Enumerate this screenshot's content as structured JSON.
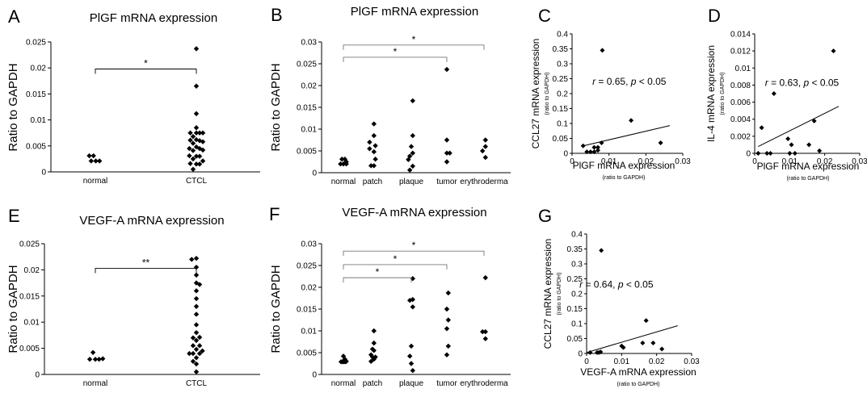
{
  "chart_data": [
    {
      "id": "A",
      "panel_label": "A",
      "type": "scatter",
      "kind": "dot",
      "title": "PlGF mRNA expression",
      "ylabel": "Ratio to GAPDH",
      "ylabel_sub": "",
      "ylim": [
        0,
        0.025
      ],
      "yticks": [
        0,
        0.005,
        0.01,
        0.015,
        0.02,
        0.025
      ],
      "ytick_labels": [
        "0",
        "0.005",
        "0.01",
        "0.015",
        "0.02",
        "0.025"
      ],
      "categories": [
        "normal",
        "CTCL"
      ],
      "groups": [
        {
          "name": "normal",
          "points": [
            [
              -0.13,
              0.0031
            ],
            [
              -0.04,
              0.0031
            ],
            [
              -0.09,
              0.0021
            ],
            [
              0.01,
              0.0021
            ],
            [
              0.09,
              0.0021
            ]
          ]
        },
        {
          "name": "CTCL",
          "points": [
            [
              -0.13,
              0.0075
            ],
            [
              -0.13,
              0.0061
            ],
            [
              -0.15,
              0.0045
            ],
            [
              -0.15,
              0.0031
            ],
            [
              -0.13,
              0.0016
            ],
            [
              -0.07,
              0.0068
            ],
            [
              -0.07,
              0.0055
            ],
            [
              -0.07,
              0.0041
            ],
            [
              -0.07,
              0.0025
            ],
            [
              -0.07,
              0.0005
            ],
            [
              0.0,
              0.0237
            ],
            [
              0.0,
              0.0165
            ],
            [
              0.0,
              0.0112
            ],
            [
              0.0,
              0.0085
            ],
            [
              0.0,
              0.0075
            ],
            [
              0.0,
              0.0062
            ],
            [
              0.0,
              0.0048
            ],
            [
              0.0,
              0.003
            ],
            [
              0.0,
              0.0015
            ],
            [
              0.07,
              0.0075
            ],
            [
              0.07,
              0.006
            ],
            [
              0.07,
              0.0045
            ],
            [
              0.07,
              0.003
            ],
            [
              0.07,
              0.0015
            ],
            [
              0.14,
              0.0075
            ],
            [
              0.14,
              0.0058
            ],
            [
              0.14,
              0.0042
            ],
            [
              0.14,
              0.0021
            ]
          ]
        }
      ],
      "brackets": [
        {
          "from": "normal",
          "to": "CTCL",
          "y": 0.0198,
          "label": "*"
        }
      ]
    },
    {
      "id": "B",
      "panel_label": "B",
      "type": "scatter",
      "kind": "dot",
      "title": "PlGF mRNA expression",
      "ylabel": "Ratio to GAPDH",
      "ylabel_sub": "",
      "ylim": [
        0,
        0.03
      ],
      "yticks": [
        0,
        0.005,
        0.01,
        0.015,
        0.02,
        0.025,
        0.03
      ],
      "ytick_labels": [
        "0",
        "0.005",
        "0.01",
        "0.015",
        "0.02",
        "0.025",
        "0.03"
      ],
      "categories": [
        "normal",
        "patch",
        "plaque",
        "tumor",
        "erythroderma"
      ],
      "groups": [
        {
          "name": "normal",
          "points": [
            [
              -0.05,
              0.0031
            ],
            [
              0.05,
              0.0031
            ],
            [
              0.1,
              0.0025
            ],
            [
              -0.1,
              0.002
            ],
            [
              0.0,
              0.002
            ],
            [
              0.1,
              0.002
            ]
          ]
        },
        {
          "name": "patch",
          "points": [
            [
              0.05,
              0.0112
            ],
            [
              0.05,
              0.0085
            ],
            [
              -0.1,
              0.007
            ],
            [
              0.1,
              0.0062
            ],
            [
              -0.1,
              0.0055
            ],
            [
              0.05,
              0.0048
            ],
            [
              0.1,
              0.0031
            ],
            [
              -0.05,
              0.0016
            ],
            [
              0.05,
              0.0016
            ]
          ]
        },
        {
          "name": "plaque",
          "points": [
            [
              0.05,
              0.0165
            ],
            [
              0.05,
              0.0085
            ],
            [
              0.0,
              0.006
            ],
            [
              0.05,
              0.0045
            ],
            [
              -0.05,
              0.0038
            ],
            [
              -0.1,
              0.003
            ],
            [
              0.05,
              0.0015
            ],
            [
              -0.05,
              0.0006
            ]
          ]
        },
        {
          "name": "tumor",
          "points": [
            [
              0.0,
              0.0237
            ],
            [
              0.0,
              0.0075
            ],
            [
              0.0,
              0.0045
            ],
            [
              0.1,
              0.0045
            ],
            [
              0.0,
              0.0025
            ]
          ]
        },
        {
          "name": "erythroderma",
          "points": [
            [
              0.05,
              0.0075
            ],
            [
              0.05,
              0.006
            ],
            [
              -0.05,
              0.005
            ],
            [
              0.05,
              0.0035
            ]
          ]
        }
      ],
      "brackets": [
        {
          "from": "normal",
          "to": "erythroderma",
          "y": 0.0293,
          "label": "*"
        },
        {
          "from": "normal",
          "to": "tumor",
          "y": 0.0265,
          "label": "*"
        }
      ]
    },
    {
      "id": "C",
      "panel_label": "C",
      "type": "scatter",
      "kind": "xy",
      "title": "",
      "ylabel": "CCL27 mRNA expression",
      "ylabel_sub": "(ratio to GAPDH)",
      "xlabel": "PlGF mRNA expression",
      "xlabel_sub": "(ratio to GAPDH)",
      "xlim": [
        0,
        0.03
      ],
      "xticks": [
        0,
        0.01,
        0.02,
        0.03
      ],
      "xtick_labels": [
        "0",
        "0.01",
        "0.02",
        "0.03"
      ],
      "ylim": [
        0,
        0.4
      ],
      "yticks": [
        0,
        0.05,
        0.1,
        0.15,
        0.2,
        0.25,
        0.3,
        0.35,
        0.4
      ],
      "ytick_labels": [
        "0",
        "0.05",
        "0.1",
        "0.15",
        "0.2",
        "0.25",
        "0.3",
        "0.35",
        "0.4"
      ],
      "x": [
        0.003,
        0.004,
        0.005,
        0.006,
        0.006,
        0.007,
        0.007,
        0.008,
        0.0082,
        0.016,
        0.024
      ],
      "y": [
        0.025,
        0.005,
        0.005,
        0.02,
        0.005,
        0.02,
        0.01,
        0.035,
        0.345,
        0.11,
        0.035
      ],
      "fit_line": {
        "x": [
          0.003,
          0.0265
        ],
        "y": [
          0.025,
          0.093
        ]
      },
      "r_prefix": "r",
      "r_value": " = 0.65, ",
      "p_prefix": "p",
      "p_value": " < 0.05",
      "annotation_pos": [
        0.0155,
        0.23
      ]
    },
    {
      "id": "D",
      "panel_label": "D",
      "type": "scatter",
      "kind": "xy",
      "title": "",
      "ylabel": "IL-4 mRNA expression",
      "ylabel_sub": "(ratio to GAPDH)",
      "xlabel": "PlGF mRNA expression",
      "xlabel_sub": "(ratio to GAPDH)",
      "xlim": [
        0,
        0.03
      ],
      "xticks": [
        0,
        0.01,
        0.02,
        0.03
      ],
      "xtick_labels": [
        "0",
        "0.01",
        "0.02",
        "0.03"
      ],
      "ylim": [
        0,
        0.014
      ],
      "yticks": [
        0,
        0.002,
        0.004,
        0.006,
        0.008,
        0.01,
        0.012,
        0.014
      ],
      "ytick_labels": [
        "0",
        "0.002",
        "0.004",
        "0.006",
        "0.008",
        "0.01",
        "0.012",
        "0.014"
      ],
      "x": [
        0.001,
        0.002,
        0.0035,
        0.0045,
        0.0055,
        0.0095,
        0.01,
        0.0105,
        0.0115,
        0.0155,
        0.017,
        0.0185,
        0.0225
      ],
      "y": [
        0,
        0.003,
        0,
        0,
        0.007,
        0.0017,
        0,
        0.001,
        0,
        0.001,
        0.0038,
        0.0003,
        0.012
      ],
      "fit_line": {
        "x": [
          0.001,
          0.024
        ],
        "y": [
          0.0008,
          0.0055
        ]
      },
      "r_prefix": "r",
      "r_value": " = 0.63, ",
      "p_prefix": "p",
      "p_value": " < 0.05",
      "annotation_pos": [
        0.0135,
        0.0079
      ]
    },
    {
      "id": "E",
      "panel_label": "E",
      "type": "scatter",
      "kind": "dot",
      "title": "VEGF-A mRNA expression",
      "ylabel": "Ratio to GAPDH",
      "ylabel_sub": "",
      "ylim": [
        0,
        0.025
      ],
      "yticks": [
        0,
        0.005,
        0.01,
        0.015,
        0.02,
        0.025
      ],
      "ytick_labels": [
        "0",
        "0.005",
        "0.01",
        "0.015",
        "0.02",
        "0.025"
      ],
      "categories": [
        "normal",
        "CTCL"
      ],
      "groups": [
        {
          "name": "normal",
          "points": [
            [
              -0.05,
              0.0042
            ],
            [
              -0.12,
              0.0029
            ],
            [
              0.0,
              0.0029
            ],
            [
              0.08,
              0.0029
            ],
            [
              0.16,
              0.003
            ]
          ]
        },
        {
          "name": "CTCL",
          "points": [
            [
              -0.1,
              0.022
            ],
            [
              0.0,
              0.0222
            ],
            [
              0.0,
              0.0205
            ],
            [
              0.0,
              0.019
            ],
            [
              0.0,
              0.0175
            ],
            [
              0.0,
              0.016
            ],
            [
              0.0,
              0.0145
            ],
            [
              0.0,
              0.013
            ],
            [
              0.0,
              0.0115
            ],
            [
              0.0,
              0.0095
            ],
            [
              0.0,
              0.008
            ],
            [
              0.0,
              0.0065
            ],
            [
              0.0,
              0.0048
            ],
            [
              0.0,
              0.0032
            ],
            [
              0.0,
              0.002
            ],
            [
              0.0,
              0.0005
            ],
            [
              -0.07,
              0.007
            ],
            [
              -0.07,
              0.0055
            ],
            [
              -0.07,
              0.004
            ],
            [
              -0.07,
              0.0025
            ],
            [
              -0.15,
              0.004
            ],
            [
              0.07,
              0.0172
            ],
            [
              0.07,
              0.0071
            ],
            [
              0.07,
              0.0055
            ],
            [
              0.07,
              0.004
            ],
            [
              0.13,
              0.0045
            ]
          ]
        }
      ],
      "brackets": [
        {
          "from": "normal",
          "to": "CTCL",
          "y": 0.0203,
          "label": "**"
        }
      ]
    },
    {
      "id": "F",
      "panel_label": "F",
      "type": "scatter",
      "kind": "dot",
      "title": "VEGF-A mRNA expression",
      "ylabel": "Ratio to GAPDH",
      "ylabel_sub": "",
      "ylim": [
        0,
        0.03
      ],
      "yticks": [
        0,
        0.005,
        0.01,
        0.015,
        0.02,
        0.025,
        0.03
      ],
      "ytick_labels": [
        "0",
        "0.005",
        "0.01",
        "0.015",
        "0.02",
        "0.025",
        "0.03"
      ],
      "categories": [
        "normal",
        "patch",
        "plaque",
        "tumor",
        "erythroderma"
      ],
      "groups": [
        {
          "name": "normal",
          "points": [
            [
              0.0,
              0.0042
            ],
            [
              0.05,
              0.0035
            ],
            [
              -0.08,
              0.0029
            ],
            [
              -0.03,
              0.0029
            ],
            [
              0.02,
              0.0029
            ],
            [
              0.07,
              0.0029
            ],
            [
              0.1,
              0.003
            ]
          ]
        },
        {
          "name": "patch",
          "points": [
            [
              0.05,
              0.01
            ],
            [
              0.05,
              0.0072
            ],
            [
              0.0,
              0.0058
            ],
            [
              0.05,
              0.0055
            ],
            [
              -0.05,
              0.0045
            ],
            [
              0.0,
              0.004
            ],
            [
              0.1,
              0.004
            ],
            [
              0.05,
              0.0035
            ],
            [
              -0.05,
              0.003
            ]
          ]
        },
        {
          "name": "plaque",
          "points": [
            [
              0.05,
              0.022
            ],
            [
              -0.05,
              0.017
            ],
            [
              0.05,
              0.0172
            ],
            [
              0.05,
              0.0155
            ],
            [
              0.0,
              0.0065
            ],
            [
              -0.05,
              0.0042
            ],
            [
              0.0,
              0.0025
            ],
            [
              0.05,
              0.0009
            ]
          ]
        },
        {
          "name": "tumor",
          "points": [
            [
              0.05,
              0.0187
            ],
            [
              0.0,
              0.015
            ],
            [
              0.05,
              0.0125
            ],
            [
              0.0,
              0.0105
            ],
            [
              0.05,
              0.0065
            ],
            [
              0.0,
              0.0045
            ]
          ]
        },
        {
          "name": "erythroderma",
          "points": [
            [
              0.05,
              0.0222
            ],
            [
              -0.05,
              0.0098
            ],
            [
              0.05,
              0.0098
            ],
            [
              0.05,
              0.0082
            ]
          ]
        }
      ],
      "brackets": [
        {
          "from": "normal",
          "to": "erythroderma",
          "y": 0.0283,
          "label": "*"
        },
        {
          "from": "normal",
          "to": "tumor",
          "y": 0.0252,
          "label": "*"
        },
        {
          "from": "normal",
          "to": "plaque",
          "y": 0.0222,
          "label": "*"
        }
      ]
    },
    {
      "id": "G",
      "panel_label": "G",
      "type": "scatter",
      "kind": "xy",
      "title": "",
      "ylabel": "CCL27 mRNA expression",
      "ylabel_sub": "(ratio to GAPDH)",
      "xlabel": "VEGF-A mRNA expression",
      "xlabel_sub": "(ratio to GAPDH)",
      "xlim": [
        0,
        0.03
      ],
      "xticks": [
        0,
        0.01,
        0.02,
        0.03
      ],
      "xtick_labels": [
        "0",
        "0.01",
        "0.02",
        "0.03"
      ],
      "ylim": [
        0,
        0.4
      ],
      "yticks": [
        0,
        0.05,
        0.1,
        0.15,
        0.2,
        0.25,
        0.3,
        0.35,
        0.4
      ],
      "ytick_labels": [
        "0",
        "0.05",
        "0.1",
        "0.15",
        "0.2",
        "0.25",
        "0.3",
        "0.35",
        "0.4"
      ],
      "x": [
        0.001,
        0.003,
        0.0035,
        0.004,
        0.0042,
        0.01,
        0.0105,
        0.016,
        0.017,
        0.019,
        0.0215
      ],
      "y": [
        0.003,
        0.003,
        0.003,
        0.005,
        0.345,
        0.025,
        0.02,
        0.035,
        0.11,
        0.035,
        0.015
      ],
      "fit_line": {
        "x": [
          0.0,
          0.026
        ],
        "y": [
          0.003,
          0.093
        ]
      },
      "r_prefix": "r",
      "r_value": " = 0.64, ",
      "p_prefix": "p",
      "p_value": " < 0.05",
      "annotation_pos": [
        0.0085,
        0.22
      ]
    }
  ]
}
